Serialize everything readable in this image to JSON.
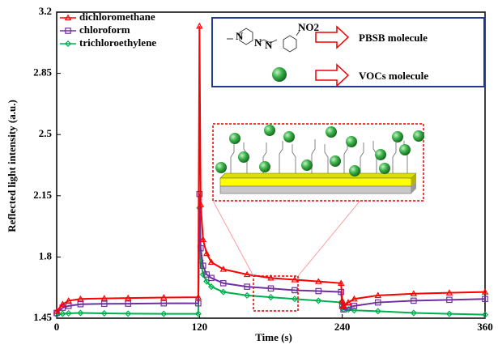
{
  "chart_data": {
    "type": "line",
    "xlabel": "Time (s)",
    "ylabel": "Reflected light intensity (a.u.)",
    "x": [
      0,
      5,
      10,
      20,
      40,
      60,
      90,
      119,
      120,
      121,
      123,
      126,
      130,
      140,
      160,
      180,
      200,
      220,
      239,
      240,
      241,
      245,
      250,
      270,
      300,
      330,
      360
    ],
    "series": [
      {
        "name": "dichloromethane",
        "color": "#ff0000",
        "marker": "triangle",
        "values": [
          1.49,
          1.53,
          1.55,
          1.56,
          1.563,
          1.565,
          1.568,
          1.57,
          3.12,
          2.1,
          1.9,
          1.82,
          1.77,
          1.73,
          1.7,
          1.68,
          1.67,
          1.66,
          1.65,
          1.55,
          1.52,
          1.54,
          1.56,
          1.58,
          1.59,
          1.595,
          1.6
        ]
      },
      {
        "name": "chloroform",
        "color": "#7030a0",
        "marker": "square",
        "values": [
          1.48,
          1.51,
          1.52,
          1.53,
          1.532,
          1.533,
          1.535,
          1.535,
          2.16,
          1.85,
          1.75,
          1.7,
          1.68,
          1.65,
          1.63,
          1.62,
          1.61,
          1.605,
          1.6,
          1.52,
          1.5,
          1.51,
          1.52,
          1.54,
          1.55,
          1.555,
          1.56
        ]
      },
      {
        "name": "trichloroethylene",
        "color": "#00b050",
        "marker": "diamond",
        "values": [
          1.47,
          1.475,
          1.478,
          1.48,
          1.478,
          1.476,
          1.475,
          1.475,
          2.08,
          1.78,
          1.7,
          1.66,
          1.63,
          1.6,
          1.58,
          1.57,
          1.56,
          1.55,
          1.54,
          1.51,
          1.5,
          1.5,
          1.495,
          1.49,
          1.48,
          1.475,
          1.47
        ]
      }
    ],
    "xlim": [
      0,
      360
    ],
    "xticks": [
      0,
      120,
      240,
      360
    ],
    "ylim": [
      1.45,
      3.2
    ],
    "yticks": [
      1.45,
      1.8,
      2.15,
      2.5,
      2.85,
      3.2
    ],
    "legend": "top-left",
    "inset": {
      "labels": [
        "PBSB molecule",
        "VOCs molecule"
      ],
      "molecule_labels": [
        "N",
        "N",
        "N",
        "NO2"
      ]
    }
  }
}
